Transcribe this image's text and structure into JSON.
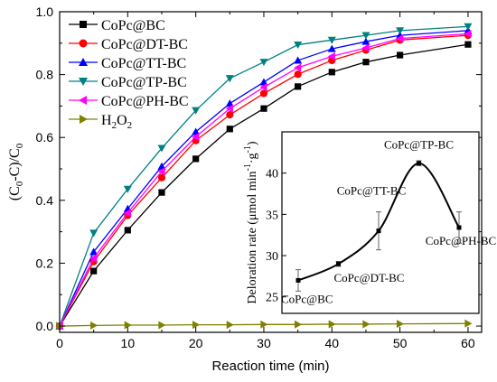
{
  "chart_data": [
    {
      "type": "line",
      "xlabel": "Reaction time (min)",
      "ylabel": "(C0-C)/C0",
      "ylabel_parts": {
        "open": "(C",
        "sub1": "0",
        "mid": "-C)/C",
        "sub2": "0"
      },
      "xlim": [
        0,
        62
      ],
      "ylim": [
        -0.02,
        1.0
      ],
      "xticks": [
        0,
        10,
        20,
        30,
        40,
        50,
        60
      ],
      "xtick_labels": [
        "0",
        "10",
        "20",
        "30",
        "40",
        "50",
        "60"
      ],
      "yticks": [
        0.0,
        0.2,
        0.4,
        0.6,
        0.8,
        1.0
      ],
      "ytick_labels": [
        "0.0",
        "0.2",
        "0.4",
        "0.6",
        "0.8",
        "1.0"
      ],
      "legend_position": "top-left",
      "x": [
        0,
        5,
        10,
        15,
        20,
        25,
        30,
        35,
        40,
        45,
        50,
        60
      ],
      "series": [
        {
          "name": "CoPc@BC",
          "color": "#000000",
          "marker": "square",
          "values": [
            0.0,
            0.175,
            0.305,
            0.425,
            0.532,
            0.627,
            0.692,
            0.762,
            0.808,
            0.84,
            0.862,
            0.896
          ]
        },
        {
          "name": "CoPc@DT-BC",
          "color": "#ff0000",
          "marker": "circle",
          "values": [
            0.0,
            0.205,
            0.352,
            0.472,
            0.59,
            0.672,
            0.74,
            0.801,
            0.845,
            0.878,
            0.91,
            0.925
          ]
        },
        {
          "name": "CoPc@TT-BC",
          "color": "#0000ff",
          "marker": "triangle-up",
          "values": [
            0.0,
            0.236,
            0.373,
            0.508,
            0.618,
            0.708,
            0.776,
            0.845,
            0.882,
            0.905,
            0.925,
            0.94
          ]
        },
        {
          "name": "CoPc@TP-BC",
          "color": "#008080",
          "marker": "triangle-down",
          "values": [
            0.0,
            0.296,
            0.436,
            0.566,
            0.686,
            0.788,
            0.84,
            0.895,
            0.91,
            0.925,
            0.94,
            0.953
          ]
        },
        {
          "name": "CoPc@PH-BC",
          "color": "#ff00ff",
          "marker": "triangle-left",
          "values": [
            0.0,
            0.216,
            0.36,
            0.492,
            0.602,
            0.692,
            0.76,
            0.822,
            0.858,
            0.885,
            0.915,
            0.93
          ]
        },
        {
          "name": "H2O2",
          "label_main": "H",
          "label_sub": "2",
          "label_tail": "O",
          "label_sub2": "2",
          "color": "#808000",
          "marker": "triangle-right",
          "values": [
            0.0,
            0.002,
            0.003,
            0.003,
            0.004,
            0.004,
            0.005,
            0.005,
            0.006,
            0.006,
            0.007,
            0.008
          ]
        }
      ]
    },
    {
      "type": "line",
      "inset": true,
      "ylabel": "Deloration rate (μmol min⁻¹ g⁻¹)",
      "ylabel_text": "Deloration rate",
      "ylabel_unit_parts": {
        "a": "(μmol min",
        "sup1": "-1",
        "b": "·g",
        "sup2": "-1",
        "c": ")"
      },
      "ylim": [
        23,
        45
      ],
      "yticks": [
        25,
        30,
        35,
        40
      ],
      "ytick_labels": [
        "25",
        "30",
        "35",
        "40"
      ],
      "color": "#000000",
      "points": [
        {
          "label": "CoPc@BC",
          "value": 27.0,
          "error": 1.3
        },
        {
          "label": "CoPc@DT-BC",
          "value": 29.0,
          "error": 0.3
        },
        {
          "label": "CoPc@TT-BC",
          "value": 33.0,
          "error": 2.3
        },
        {
          "label": "CoPc@TP-BC",
          "value": 41.2,
          "error": 0.3
        },
        {
          "label": "CoPc@PH-BC",
          "value": 33.4,
          "error": 1.9
        }
      ]
    }
  ]
}
